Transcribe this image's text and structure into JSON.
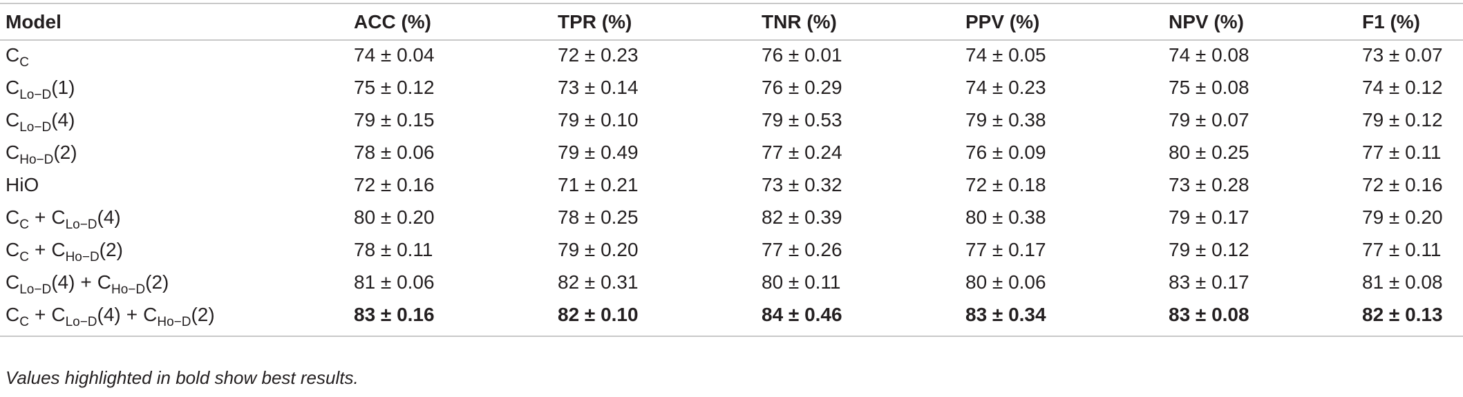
{
  "header": {
    "model": "Model",
    "columns": [
      "ACC (%)",
      "TPR (%)",
      "TNR (%)",
      "PPV (%)",
      "NPV (%)",
      "F1 (%)"
    ]
  },
  "rows": [
    {
      "model": [
        {
          "t": "C"
        },
        {
          "s": "C"
        }
      ],
      "values": [
        "74 ± 0.04",
        "72 ± 0.23",
        "76 ± 0.01",
        "74 ± 0.05",
        "74 ± 0.08",
        "73 ± 0.07"
      ]
    },
    {
      "model": [
        {
          "t": "C"
        },
        {
          "s": "Lo−D"
        },
        {
          "t": "(1)"
        }
      ],
      "values": [
        "75 ± 0.12",
        "73 ± 0.14",
        "76 ± 0.29",
        "74 ± 0.23",
        "75 ± 0.08",
        "74 ± 0.12"
      ]
    },
    {
      "model": [
        {
          "t": "C"
        },
        {
          "s": "Lo−D"
        },
        {
          "t": "(4)"
        }
      ],
      "values": [
        "79 ± 0.15",
        "79 ± 0.10",
        "79 ± 0.53",
        "79 ± 0.38",
        "79 ± 0.07",
        "79 ± 0.12"
      ]
    },
    {
      "model": [
        {
          "t": "C"
        },
        {
          "s": "Ho−D"
        },
        {
          "t": "(2)"
        }
      ],
      "values": [
        "78 ± 0.06",
        "79 ± 0.49",
        "77 ± 0.24",
        "76 ± 0.09",
        "80 ± 0.25",
        "77 ± 0.11"
      ]
    },
    {
      "model": [
        {
          "t": "HiO"
        }
      ],
      "values": [
        "72 ± 0.16",
        "71 ± 0.21",
        "73 ± 0.32",
        "72 ± 0.18",
        "73 ± 0.28",
        "72 ± 0.16"
      ]
    },
    {
      "model": [
        {
          "t": "C"
        },
        {
          "s": "C"
        },
        {
          "p": "+"
        },
        {
          "t": "C"
        },
        {
          "s": "Lo−D"
        },
        {
          "t": "(4)"
        }
      ],
      "values": [
        "80 ± 0.20",
        "78 ± 0.25",
        "82 ± 0.39",
        "80 ± 0.38",
        "79 ± 0.17",
        "79 ± 0.20"
      ]
    },
    {
      "model": [
        {
          "t": "C"
        },
        {
          "s": "C"
        },
        {
          "p": "+"
        },
        {
          "t": "C"
        },
        {
          "s": "Ho−D"
        },
        {
          "t": "(2)"
        }
      ],
      "values": [
        "78 ± 0.11",
        "79 ± 0.20",
        "77 ± 0.26",
        "77 ± 0.17",
        "79 ± 0.12",
        "77 ± 0.11"
      ]
    },
    {
      "model": [
        {
          "t": "C"
        },
        {
          "s": "Lo−D"
        },
        {
          "t": "(4)"
        },
        {
          "p": "+"
        },
        {
          "t": "C"
        },
        {
          "s": "Ho−D"
        },
        {
          "t": "(2)"
        }
      ],
      "values": [
        "81 ± 0.06",
        "82 ± 0.31",
        "80 ± 0.11",
        "80 ± 0.06",
        "83 ± 0.17",
        "81 ± 0.08"
      ]
    },
    {
      "model": [
        {
          "t": "C"
        },
        {
          "s": "C"
        },
        {
          "p": "+"
        },
        {
          "t": "C"
        },
        {
          "s": "Lo−D"
        },
        {
          "t": "(4)"
        },
        {
          "p": "+"
        },
        {
          "t": "C"
        },
        {
          "s": "Ho−D"
        },
        {
          "t": "(2)"
        }
      ],
      "values": [
        "83 ± 0.16",
        "82 ± 0.10",
        "84 ± 0.46",
        "83 ± 0.34",
        "83 ± 0.08",
        "82 ± 0.13"
      ],
      "best": true
    }
  ],
  "footnote": "Values highlighted in bold show best results."
}
